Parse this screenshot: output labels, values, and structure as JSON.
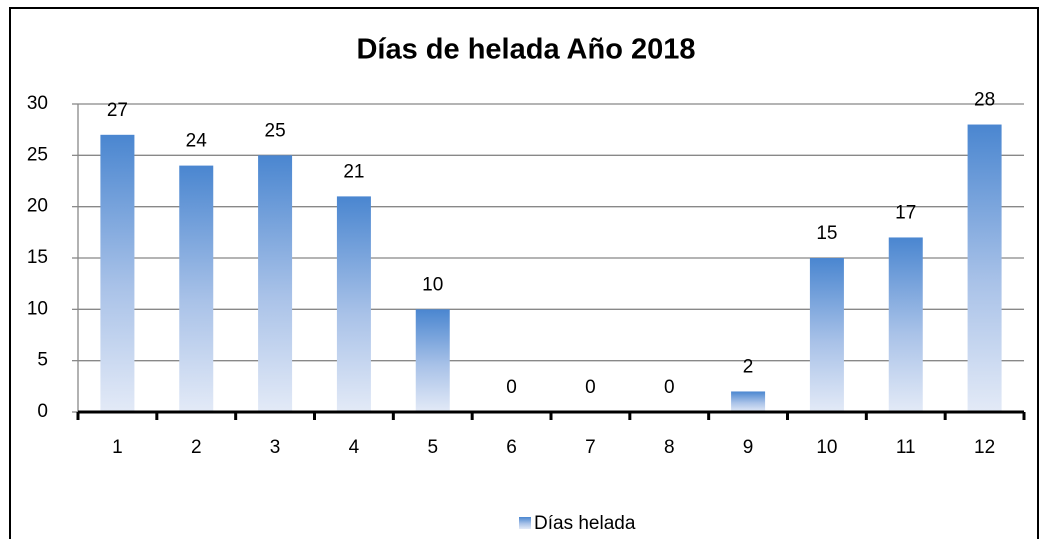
{
  "chart_data": {
    "type": "bar",
    "title": "Días de helada Año 2018",
    "categories": [
      "1",
      "2",
      "3",
      "4",
      "5",
      "6",
      "7",
      "8",
      "9",
      "10",
      "11",
      "12"
    ],
    "series": [
      {
        "name": "Días helada",
        "color": "#4a86d0",
        "values": [
          27,
          24,
          25,
          21,
          10,
          0,
          0,
          0,
          2,
          15,
          17,
          28
        ]
      }
    ],
    "ylim": [
      0,
      30
    ],
    "yticks": [
      0,
      5,
      10,
      15,
      20,
      25,
      30
    ],
    "grid": true,
    "legend": "bottom"
  }
}
